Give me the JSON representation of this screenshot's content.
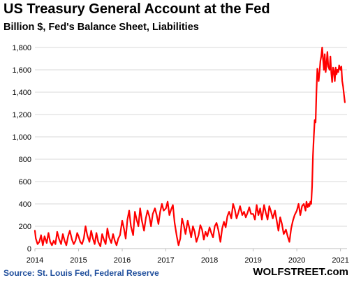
{
  "chart_data": {
    "type": "line",
    "title": "US Treasury General Account at the Fed",
    "subtitle": "Billion $, Fed's Balance Sheet, Liabilities",
    "source": "Source: St. Louis Fed, Federal Reserve",
    "watermark": "WOLFSTREET.com",
    "xlabel": "",
    "ylabel": "",
    "xlim": [
      2014.0,
      2021.15
    ],
    "ylim": [
      0,
      1800
    ],
    "yticks": [
      0,
      200,
      400,
      600,
      800,
      "1,000",
      "1,200",
      "1,400",
      "1,600",
      "1,800"
    ],
    "xticks": [
      "2014",
      "2015",
      "2016",
      "2017",
      "2018",
      "2019",
      "2020",
      "2021"
    ],
    "grid": "horizontal",
    "line_color": "#ff0000",
    "series": [
      {
        "x": [
          2014.0,
          2014.02,
          2014.06,
          2014.1,
          2014.14,
          2014.18,
          2014.22,
          2014.27,
          2014.31,
          2014.35,
          2014.39,
          2014.43,
          2014.47,
          2014.51,
          2014.55,
          2014.6,
          2014.64,
          2014.68,
          2014.72,
          2014.76,
          2014.8,
          2014.85,
          2014.89,
          2014.93,
          2014.97,
          2015.0,
          2015.04,
          2015.08,
          2015.12,
          2015.16,
          2015.2,
          2015.25,
          2015.29,
          2015.33,
          2015.37,
          2015.41,
          2015.45,
          2015.5,
          2015.54,
          2015.58,
          2015.62,
          2015.66,
          2015.7,
          2015.75,
          2015.79,
          2015.83,
          2015.87,
          2015.91,
          2015.95,
          2016.0,
          2016.04,
          2016.08,
          2016.12,
          2016.16,
          2016.2,
          2016.25,
          2016.29,
          2016.33,
          2016.37,
          2016.41,
          2016.45,
          2016.5,
          2016.54,
          2016.58,
          2016.62,
          2016.66,
          2016.7,
          2016.75,
          2016.79,
          2016.83,
          2016.87,
          2016.91,
          2016.95,
          2017.0,
          2017.04,
          2017.08,
          2017.12,
          2017.16,
          2017.2,
          2017.25,
          2017.29,
          2017.33,
          2017.37,
          2017.41,
          2017.45,
          2017.5,
          2017.54,
          2017.58,
          2017.62,
          2017.66,
          2017.7,
          2017.75,
          2017.79,
          2017.83,
          2017.87,
          2017.91,
          2017.95,
          2018.0,
          2018.04,
          2018.08,
          2018.12,
          2018.16,
          2018.2,
          2018.25,
          2018.29,
          2018.33,
          2018.37,
          2018.41,
          2018.45,
          2018.5,
          2018.54,
          2018.58,
          2018.62,
          2018.66,
          2018.7,
          2018.75,
          2018.79,
          2018.83,
          2018.87,
          2018.91,
          2018.95,
          2019.0,
          2019.04,
          2019.08,
          2019.12,
          2019.16,
          2019.2,
          2019.25,
          2019.29,
          2019.33,
          2019.37,
          2019.41,
          2019.45,
          2019.5,
          2019.54,
          2019.58,
          2019.62,
          2019.66,
          2019.7,
          2019.75,
          2019.79,
          2019.83,
          2019.87,
          2019.91,
          2019.95,
          2020.0,
          2020.04,
          2020.08,
          2020.12,
          2020.16,
          2020.2,
          2020.22,
          2020.25,
          2020.27,
          2020.29,
          2020.31,
          2020.33,
          2020.35,
          2020.37,
          2020.39,
          2020.41,
          2020.43,
          2020.45,
          2020.47,
          2020.5,
          2020.52,
          2020.54,
          2020.56,
          2020.58,
          2020.6,
          2020.62,
          2020.64,
          2020.66,
          2020.68,
          2020.7,
          2020.72,
          2020.75,
          2020.77,
          2020.79,
          2020.81,
          2020.83,
          2020.85,
          2020.87,
          2020.89,
          2020.91,
          2020.93,
          2020.95,
          2020.97,
          2021.0,
          2021.02,
          2021.04,
          2021.06,
          2021.08,
          2021.1
        ],
        "y": [
          160,
          90,
          40,
          60,
          120,
          30,
          110,
          50,
          140,
          60,
          30,
          70,
          40,
          150,
          90,
          40,
          130,
          70,
          30,
          110,
          160,
          80,
          40,
          70,
          140,
          110,
          60,
          40,
          90,
          200,
          120,
          60,
          160,
          90,
          40,
          140,
          60,
          20,
          130,
          80,
          40,
          180,
          100,
          50,
          130,
          70,
          30,
          90,
          120,
          250,
          180,
          90,
          260,
          340,
          200,
          120,
          330,
          260,
          200,
          360,
          250,
          160,
          270,
          340,
          290,
          200,
          310,
          360,
          300,
          220,
          330,
          400,
          340,
          360,
          420,
          300,
          350,
          390,
          230,
          110,
          30,
          90,
          270,
          210,
          130,
          250,
          180,
          100,
          200,
          150,
          60,
          120,
          210,
          170,
          80,
          150,
          110,
          190,
          140,
          100,
          200,
          230,
          170,
          60,
          180,
          240,
          190,
          290,
          330,
          270,
          400,
          350,
          270,
          320,
          380,
          300,
          330,
          280,
          320,
          370,
          310,
          310,
          260,
          390,
          300,
          360,
          260,
          390,
          320,
          260,
          380,
          330,
          270,
          340,
          250,
          160,
          280,
          220,
          130,
          170,
          110,
          60,
          180,
          250,
          300,
          340,
          400,
          300,
          380,
          400,
          340,
          420,
          370,
          400,
          380,
          420,
          400,
          560,
          830,
          1010,
          1150,
          1130,
          1400,
          1610,
          1500,
          1580,
          1680,
          1720,
          1800,
          1700,
          1600,
          1740,
          1580,
          1650,
          1760,
          1630,
          1600,
          1720,
          1570,
          1490,
          1620,
          1590,
          1500,
          1620,
          1560,
          1600,
          1580,
          1640,
          1600,
          1630,
          1500,
          1450,
          1380,
          1310
        ]
      }
    ]
  }
}
